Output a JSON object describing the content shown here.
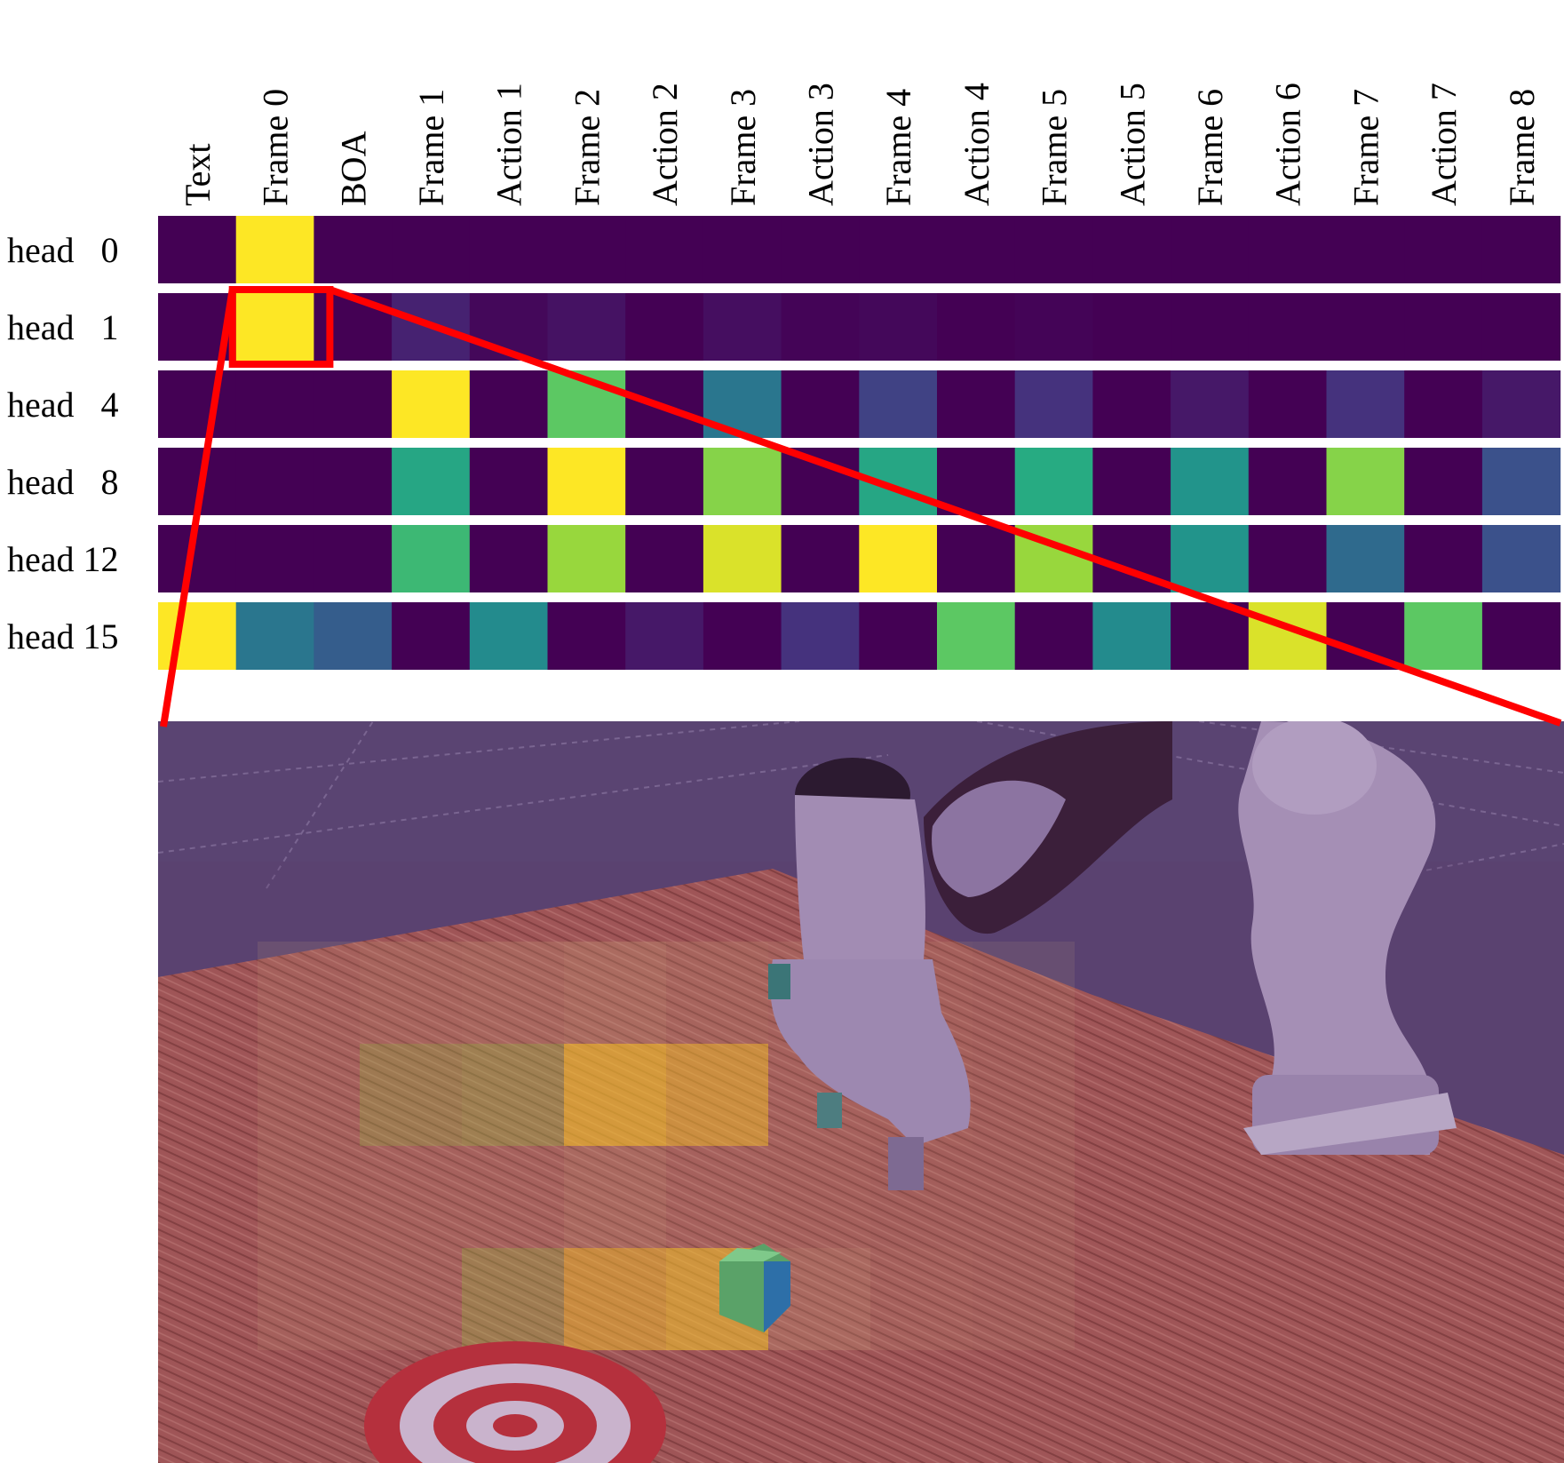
{
  "chart_data": {
    "type": "heatmap",
    "title": "",
    "xlabel": "",
    "ylabel": "",
    "columns": [
      "Text",
      "Frame 0",
      "BOA",
      "Frame 1",
      "Action 1",
      "Frame 2",
      "Action 2",
      "Frame 3",
      "Action 3",
      "Frame 4",
      "Action 4",
      "Frame 5",
      "Action 5",
      "Frame 6",
      "Action 6",
      "Frame 7",
      "Action 7",
      "Frame 8"
    ],
    "rows": [
      "head   0",
      "head   1",
      "head   4",
      "head   8",
      "head 12",
      "head 15"
    ],
    "values": [
      [
        0.0,
        1.0,
        0.0,
        0.0,
        0.0,
        0.0,
        0.0,
        0.0,
        0.0,
        0.0,
        0.0,
        0.0,
        0.0,
        0.0,
        0.0,
        0.0,
        0.0,
        0.0
      ],
      [
        0.0,
        1.0,
        0.0,
        0.1,
        0.02,
        0.05,
        0.0,
        0.04,
        0.01,
        0.02,
        0.0,
        0.01,
        0.0,
        0.0,
        0.0,
        0.0,
        0.0,
        0.0
      ],
      [
        0.0,
        0.0,
        0.0,
        1.0,
        0.0,
        0.75,
        0.0,
        0.4,
        0.0,
        0.2,
        0.0,
        0.15,
        0.0,
        0.07,
        0.0,
        0.15,
        0.0,
        0.07
      ],
      [
        0.0,
        0.0,
        0.0,
        0.6,
        0.0,
        1.0,
        0.0,
        0.82,
        0.0,
        0.6,
        0.0,
        0.62,
        0.0,
        0.52,
        0.0,
        0.82,
        0.0,
        0.25
      ],
      [
        0.0,
        0.0,
        0.0,
        0.68,
        0.0,
        0.85,
        0.0,
        0.95,
        0.0,
        1.0,
        0.0,
        0.85,
        0.0,
        0.52,
        0.0,
        0.35,
        0.0,
        0.25
      ],
      [
        1.0,
        0.4,
        0.3,
        0.0,
        0.48,
        0.0,
        0.07,
        0.0,
        0.15,
        0.0,
        0.75,
        0.0,
        0.48,
        0.0,
        0.95,
        0.0,
        0.75,
        0.0
      ]
    ],
    "colormap": "viridis",
    "highlight": {
      "row": "head   1",
      "column": "Frame 0",
      "color": "#ff0000"
    },
    "inset": {
      "description_color_overlay": "#4b2a6b",
      "patch_grid": {
        "cols": 8,
        "rows": 4
      },
      "patch_values": [
        [
          0.05,
          0.15,
          0.2,
          0.3,
          0.15,
          0.1,
          0.05,
          0.0
        ],
        [
          0.05,
          0.4,
          0.5,
          0.95,
          0.75,
          0.1,
          0.05,
          0.0
        ],
        [
          0.05,
          0.1,
          0.1,
          0.25,
          0.1,
          0.05,
          0.0,
          0.0
        ],
        [
          0.05,
          0.1,
          0.45,
          0.7,
          0.85,
          0.25,
          0.05,
          0.0
        ]
      ]
    }
  }
}
